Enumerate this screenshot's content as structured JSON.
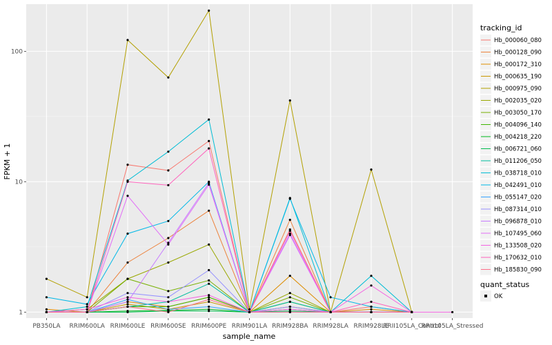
{
  "chart_data": {
    "type": "line",
    "title": "",
    "xlabel": "sample_name",
    "ylabel": "FPKM + 1",
    "y_scale": "log10",
    "ylim": [
      0.9,
      230
    ],
    "y_ticks": [
      1,
      10,
      100
    ],
    "y_tick_labels": [
      "1",
      "10",
      "100"
    ],
    "categories": [
      "PB350LA",
      "RRIM600LA",
      "RRIM600LE",
      "RRIM600SE",
      "RRIM600PE",
      "RRIM901LA",
      "RRIM928BA",
      "RRIM928LA",
      "RRIM928LE",
      "RRII105LA_Control",
      "RRII105LA_Stressed"
    ],
    "legend": {
      "title": "tracking_id",
      "position": "right"
    },
    "status_legend": {
      "title": "quant_status",
      "items": [
        "OK"
      ]
    },
    "series": [
      {
        "name": "Hb_000060_080",
        "color": "#F8766D",
        "values": [
          1.0,
          1.0,
          13.5,
          12.2,
          20.5,
          1.0,
          4.3,
          1.0,
          1.1,
          1.0,
          null
        ]
      },
      {
        "name": "Hb_000128_090",
        "color": "#EC823C",
        "values": [
          1.0,
          1.0,
          2.4,
          3.7,
          6.0,
          1.0,
          5.1,
          1.0,
          1.0,
          1.0,
          null
        ]
      },
      {
        "name": "Hb_000172_310",
        "color": "#DD8D00",
        "values": [
          1.05,
          1.0,
          1.2,
          1.1,
          1.3,
          1.0,
          1.9,
          1.0,
          1.05,
          1.0,
          null
        ]
      },
      {
        "name": "Hb_000635_190",
        "color": "#C99700",
        "values": [
          1.0,
          1.0,
          1.15,
          1.05,
          1.2,
          1.0,
          1.1,
          1.0,
          1.0,
          1.0,
          null
        ]
      },
      {
        "name": "Hb_000975_090",
        "color": "#B3A000",
        "values": [
          1.8,
          1.3,
          122,
          63,
          205,
          1.05,
          42,
          1.0,
          12.4,
          1.0,
          null
        ]
      },
      {
        "name": "Hb_002035_020",
        "color": "#99A800",
        "values": [
          1.0,
          1.05,
          1.8,
          2.4,
          3.3,
          1.0,
          1.4,
          1.0,
          1.0,
          1.0,
          null
        ]
      },
      {
        "name": "Hb_003050_170",
        "color": "#77AF00",
        "values": [
          1.0,
          1.0,
          1.8,
          1.45,
          1.75,
          1.0,
          1.3,
          1.0,
          1.0,
          1.0,
          null
        ]
      },
      {
        "name": "Hb_004096_140",
        "color": "#3FB500",
        "values": [
          1.0,
          1.0,
          1.1,
          1.1,
          1.3,
          1.0,
          1.2,
          1.0,
          1.0,
          1.0,
          null
        ]
      },
      {
        "name": "Hb_004218_220",
        "color": "#00B81F",
        "values": [
          1.0,
          1.0,
          1.02,
          1.03,
          1.05,
          1.0,
          1.05,
          1.0,
          1.0,
          1.0,
          null
        ]
      },
      {
        "name": "Hb_006721_060",
        "color": "#00BB4E",
        "values": [
          1.0,
          1.0,
          1.0,
          1.02,
          1.02,
          1.0,
          1.02,
          1.0,
          1.0,
          1.0,
          null
        ]
      },
      {
        "name": "Hb_011206_050",
        "color": "#00BD9E",
        "values": [
          1.0,
          1.0,
          1.1,
          1.2,
          1.65,
          1.0,
          1.2,
          1.0,
          1.0,
          1.0,
          null
        ]
      },
      {
        "name": "Hb_038718_010",
        "color": "#00BDD5",
        "values": [
          1.0,
          1.1,
          10.2,
          17.0,
          30.0,
          1.0,
          7.5,
          1.0,
          1.9,
          1.0,
          null
        ]
      },
      {
        "name": "Hb_042491_010",
        "color": "#00B8E7",
        "values": [
          1.3,
          1.15,
          4.0,
          5.0,
          10.0,
          1.0,
          7.4,
          1.3,
          1.1,
          1.0,
          null
        ]
      },
      {
        "name": "Hb_055147_020",
        "color": "#35A2FF",
        "values": [
          1.0,
          1.0,
          1.25,
          1.05,
          1.1,
          1.0,
          1.0,
          1.0,
          1.0,
          1.0,
          null
        ]
      },
      {
        "name": "Hb_087314_010",
        "color": "#9590FF",
        "values": [
          1.0,
          1.0,
          1.4,
          1.3,
          2.1,
          1.0,
          1.1,
          1.0,
          1.0,
          1.0,
          null
        ]
      },
      {
        "name": "Hb_096878_010",
        "color": "#C77CFF",
        "values": [
          1.0,
          1.0,
          1.2,
          3.4,
          9.8,
          1.0,
          4.0,
          1.0,
          1.0,
          1.0,
          null
        ]
      },
      {
        "name": "Hb_107495_060",
        "color": "#E26EF7",
        "values": [
          1.0,
          1.0,
          7.8,
          3.3,
          9.5,
          1.0,
          3.9,
          1.0,
          1.0,
          1.0,
          null
        ]
      },
      {
        "name": "Hb_133508_020",
        "color": "#F464E2",
        "values": [
          1.0,
          1.05,
          1.3,
          1.2,
          1.35,
          1.0,
          1.05,
          1.0,
          1.6,
          1.0,
          1.0
        ]
      },
      {
        "name": "Hb_170632_010",
        "color": "#FF62BC",
        "values": [
          1.0,
          1.0,
          10.0,
          9.4,
          18.0,
          1.0,
          4.2,
          1.0,
          1.2,
          1.0,
          null
        ]
      },
      {
        "name": "Hb_185830_090",
        "color": "#FE6E8A",
        "values": [
          1.0,
          1.0,
          1.1,
          1.0,
          1.25,
          1.0,
          1.0,
          1.0,
          1.0,
          1.0,
          null
        ]
      }
    ]
  }
}
